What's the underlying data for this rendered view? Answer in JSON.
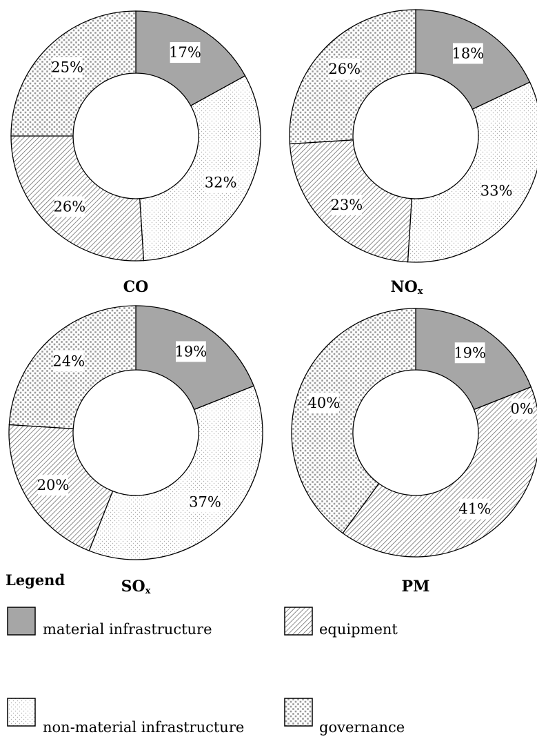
{
  "chart_data": [
    {
      "type": "pie",
      "title": "CO",
      "title_sub": "",
      "categories": [
        "material infrastructure",
        "non-material infrastructure",
        "equipment",
        "governance"
      ],
      "values": [
        17,
        32,
        26,
        25
      ],
      "value_labels": [
        "17%",
        "32%",
        "26%",
        "25%"
      ]
    },
    {
      "type": "pie",
      "title": "NO",
      "title_sub": "x",
      "categories": [
        "material infrastructure",
        "non-material infrastructure",
        "equipment",
        "governance"
      ],
      "values": [
        18,
        33,
        23,
        26
      ],
      "value_labels": [
        "18%",
        "33%",
        "23%",
        "26%"
      ]
    },
    {
      "type": "pie",
      "title": "SO",
      "title_sub": "x",
      "categories": [
        "material infrastructure",
        "non-material infrastructure",
        "equipment",
        "governance"
      ],
      "values": [
        19,
        37,
        20,
        24
      ],
      "value_labels": [
        "19%",
        "37%",
        "20%",
        "24%"
      ]
    },
    {
      "type": "pie",
      "title": "PM",
      "title_sub": "",
      "categories": [
        "material infrastructure",
        "non-material infrastructure",
        "equipment",
        "governance"
      ],
      "values": [
        19,
        0,
        41,
        40
      ],
      "value_labels": [
        "19%",
        "0%",
        "41%",
        "40%"
      ]
    }
  ],
  "legend": {
    "title": "Legend",
    "items": [
      {
        "label": "material infrastructure",
        "pattern": "solid-gray"
      },
      {
        "label": "equipment",
        "pattern": "diagonal-hatch"
      },
      {
        "label": "non-material infrastructure",
        "pattern": "dots"
      },
      {
        "label": "governance",
        "pattern": "checker"
      }
    ]
  },
  "colors": {
    "material": "#a6a6a6",
    "outline": "#000000",
    "label_bg": "#ffffff"
  }
}
